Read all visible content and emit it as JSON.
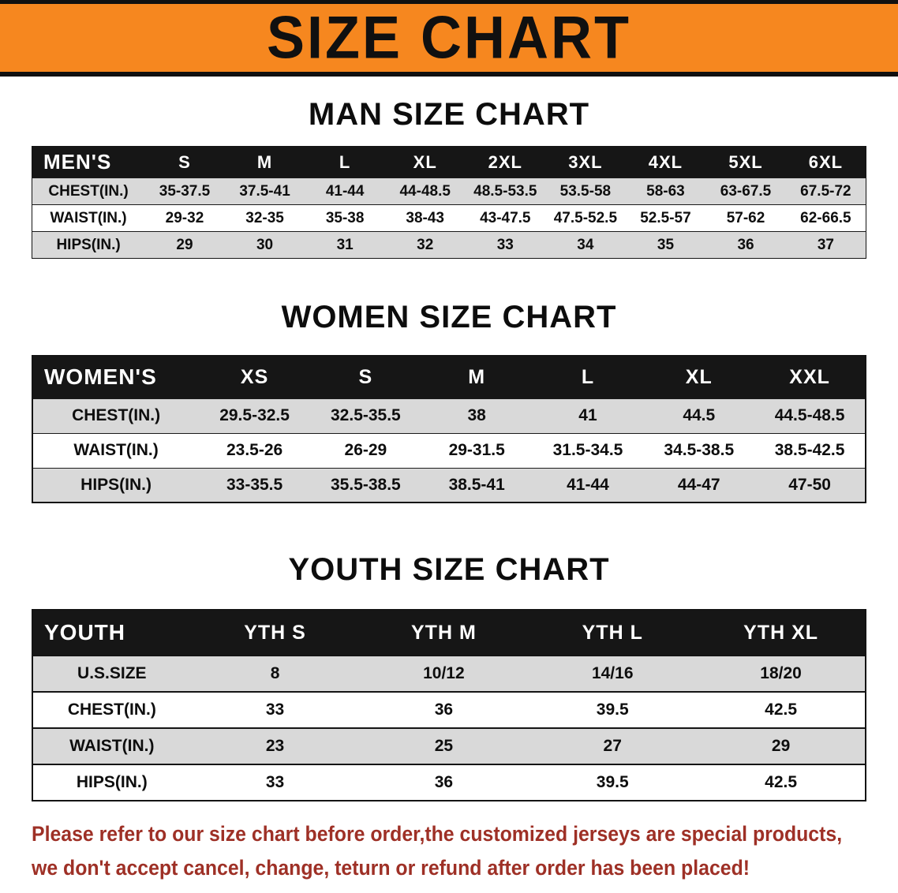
{
  "banner": {
    "title": "SIZE CHART"
  },
  "colors": {
    "accent_orange": "#f6871f",
    "header_black": "#161616",
    "row_gray": "#d9d9d9",
    "footer_red": "#9e3026"
  },
  "sections": [
    {
      "id": "men",
      "heading": "MAN SIZE CHART",
      "header": [
        "MEN'S",
        "S",
        "M",
        "L",
        "XL",
        "2XL",
        "3XL",
        "4XL",
        "5XL",
        "6XL"
      ],
      "rows": [
        {
          "label": "CHEST(IN.)",
          "values": [
            "35-37.5",
            "37.5-41",
            "41-44",
            "44-48.5",
            "48.5-53.5",
            "53.5-58",
            "58-63",
            "63-67.5",
            "67.5-72"
          ]
        },
        {
          "label": "WAIST(IN.)",
          "values": [
            "29-32",
            "32-35",
            "35-38",
            "38-43",
            "43-47.5",
            "47.5-52.5",
            "52.5-57",
            "57-62",
            "62-66.5"
          ]
        },
        {
          "label": "HIPS(IN.)",
          "values": [
            "29",
            "30",
            "31",
            "32",
            "33",
            "34",
            "35",
            "36",
            "37"
          ]
        }
      ]
    },
    {
      "id": "women",
      "heading": "WOMEN SIZE CHART",
      "header": [
        "WOMEN'S",
        "XS",
        "S",
        "M",
        "L",
        "XL",
        "XXL"
      ],
      "rows": [
        {
          "label": "CHEST(IN.)",
          "values": [
            "29.5-32.5",
            "32.5-35.5",
            "38",
            "41",
            "44.5",
            "44.5-48.5"
          ]
        },
        {
          "label": "WAIST(IN.)",
          "values": [
            "23.5-26",
            "26-29",
            "29-31.5",
            "31.5-34.5",
            "34.5-38.5",
            "38.5-42.5"
          ]
        },
        {
          "label": "HIPS(IN.)",
          "values": [
            "33-35.5",
            "35.5-38.5",
            "38.5-41",
            "41-44",
            "44-47",
            "47-50"
          ]
        }
      ]
    },
    {
      "id": "youth",
      "heading": "YOUTH SIZE CHART",
      "header": [
        "YOUTH",
        "YTH S",
        "YTH M",
        "YTH L",
        "YTH XL"
      ],
      "rows": [
        {
          "label": "U.S.SIZE",
          "values": [
            "8",
            "10/12",
            "14/16",
            "18/20"
          ]
        },
        {
          "label": "CHEST(IN.)",
          "values": [
            "33",
            "36",
            "39.5",
            "42.5"
          ]
        },
        {
          "label": "WAIST(IN.)",
          "values": [
            "23",
            "25",
            "27",
            "29"
          ]
        },
        {
          "label": "HIPS(IN.)",
          "values": [
            "33",
            "36",
            "39.5",
            "42.5"
          ]
        }
      ]
    }
  ],
  "footer": {
    "line1": "Please refer to our size chart before order,the customized jerseys are special products,",
    "line2": "we don't accept cancel, change, teturn or refund after order has been placed!"
  }
}
